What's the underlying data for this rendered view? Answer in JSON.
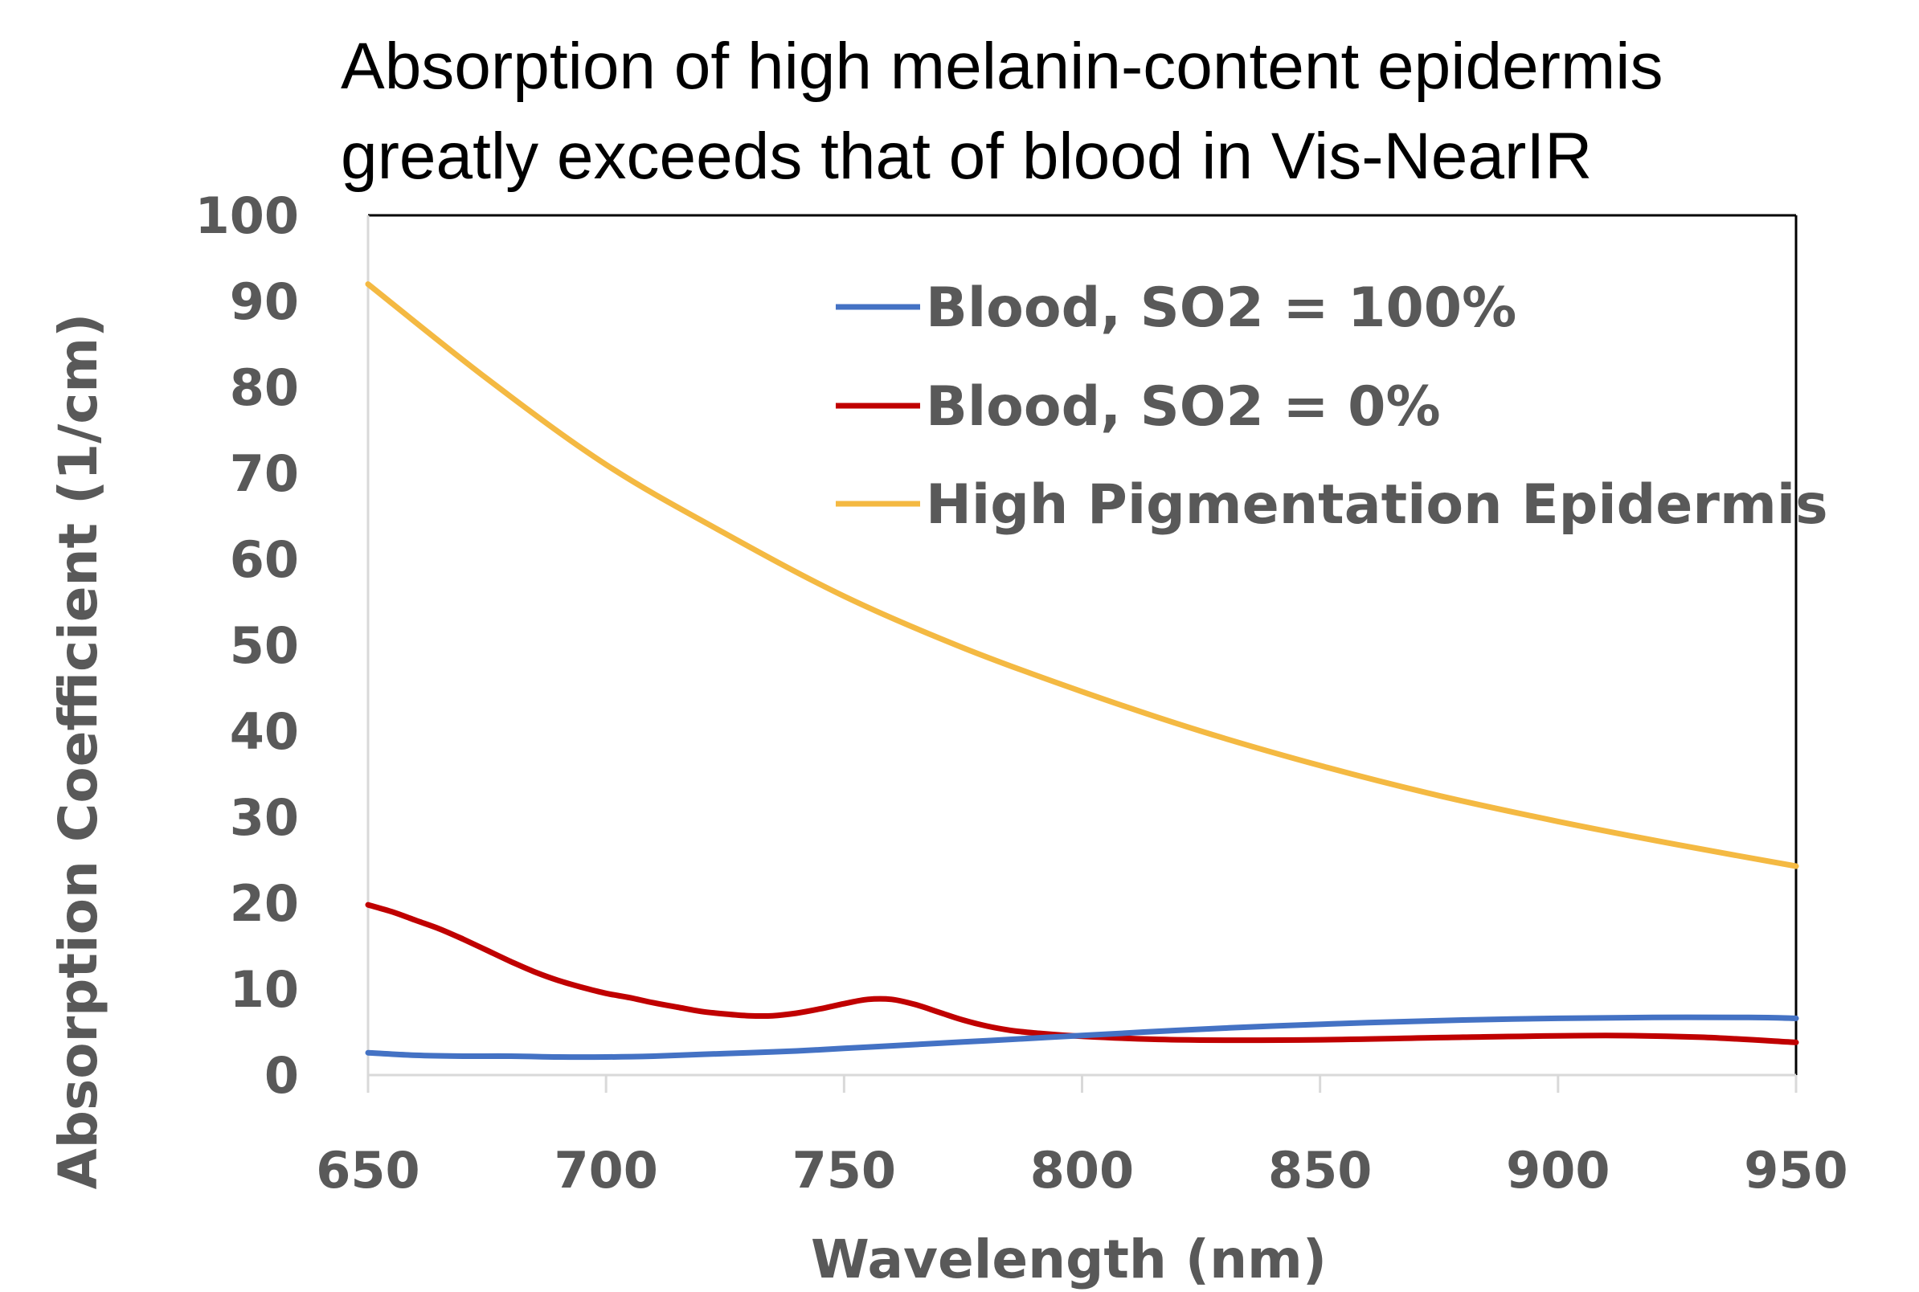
{
  "chart_data": {
    "type": "line",
    "title_lines": [
      "Absorption of high melanin-content epidermis",
      "greatly exceeds that of blood in Vis-NearIR"
    ],
    "xlabel": "Wavelength (nm)",
    "ylabel": "Absorption Coefficient (1/cm)",
    "xlim": [
      650,
      950
    ],
    "ylim": [
      0,
      100
    ],
    "x_ticks": [
      650,
      700,
      750,
      800,
      850,
      900,
      950
    ],
    "y_ticks": [
      0,
      10,
      20,
      30,
      40,
      50,
      60,
      70,
      80,
      90,
      100
    ],
    "grid": false,
    "legend_position": "top-right",
    "series": [
      {
        "name": "Blood, SO2 = 100%",
        "color": "#4472C4",
        "x": [
          650,
          660,
          670,
          680,
          690,
          700,
          710,
          720,
          730,
          740,
          750,
          760,
          770,
          780,
          790,
          800,
          820,
          840,
          860,
          880,
          900,
          920,
          940,
          950
        ],
        "y": [
          2.6,
          2.3,
          2.2,
          2.2,
          2.1,
          2.1,
          2.2,
          2.4,
          2.6,
          2.8,
          3.1,
          3.4,
          3.7,
          4.0,
          4.3,
          4.6,
          5.2,
          5.7,
          6.1,
          6.4,
          6.6,
          6.7,
          6.7,
          6.6
        ]
      },
      {
        "name": "Blood, SO2 = 0%",
        "color": "#C00000",
        "x": [
          650,
          655,
          660,
          665,
          670,
          675,
          680,
          685,
          690,
          695,
          700,
          705,
          710,
          715,
          720,
          725,
          730,
          735,
          740,
          745,
          750,
          755,
          760,
          765,
          770,
          775,
          780,
          785,
          790,
          800,
          820,
          850,
          880,
          910,
          930,
          950
        ],
        "y": [
          19.8,
          19.0,
          18.0,
          17.0,
          15.8,
          14.5,
          13.2,
          12.0,
          11.0,
          10.2,
          9.5,
          9.0,
          8.4,
          7.9,
          7.4,
          7.1,
          6.9,
          6.9,
          7.2,
          7.7,
          8.3,
          8.8,
          8.8,
          8.2,
          7.3,
          6.4,
          5.7,
          5.2,
          4.9,
          4.5,
          4.1,
          4.1,
          4.4,
          4.6,
          4.4,
          3.8
        ]
      },
      {
        "name": "High Pigmentation Epidermis",
        "color": "#F4B942",
        "x": [
          650,
          675,
          700,
          725,
          750,
          775,
          800,
          825,
          850,
          875,
          900,
          925,
          950
        ],
        "y": [
          92.0,
          81.0,
          71.0,
          63.0,
          55.7,
          49.7,
          44.6,
          40.0,
          36.0,
          32.5,
          29.5,
          26.8,
          24.3
        ]
      }
    ]
  }
}
